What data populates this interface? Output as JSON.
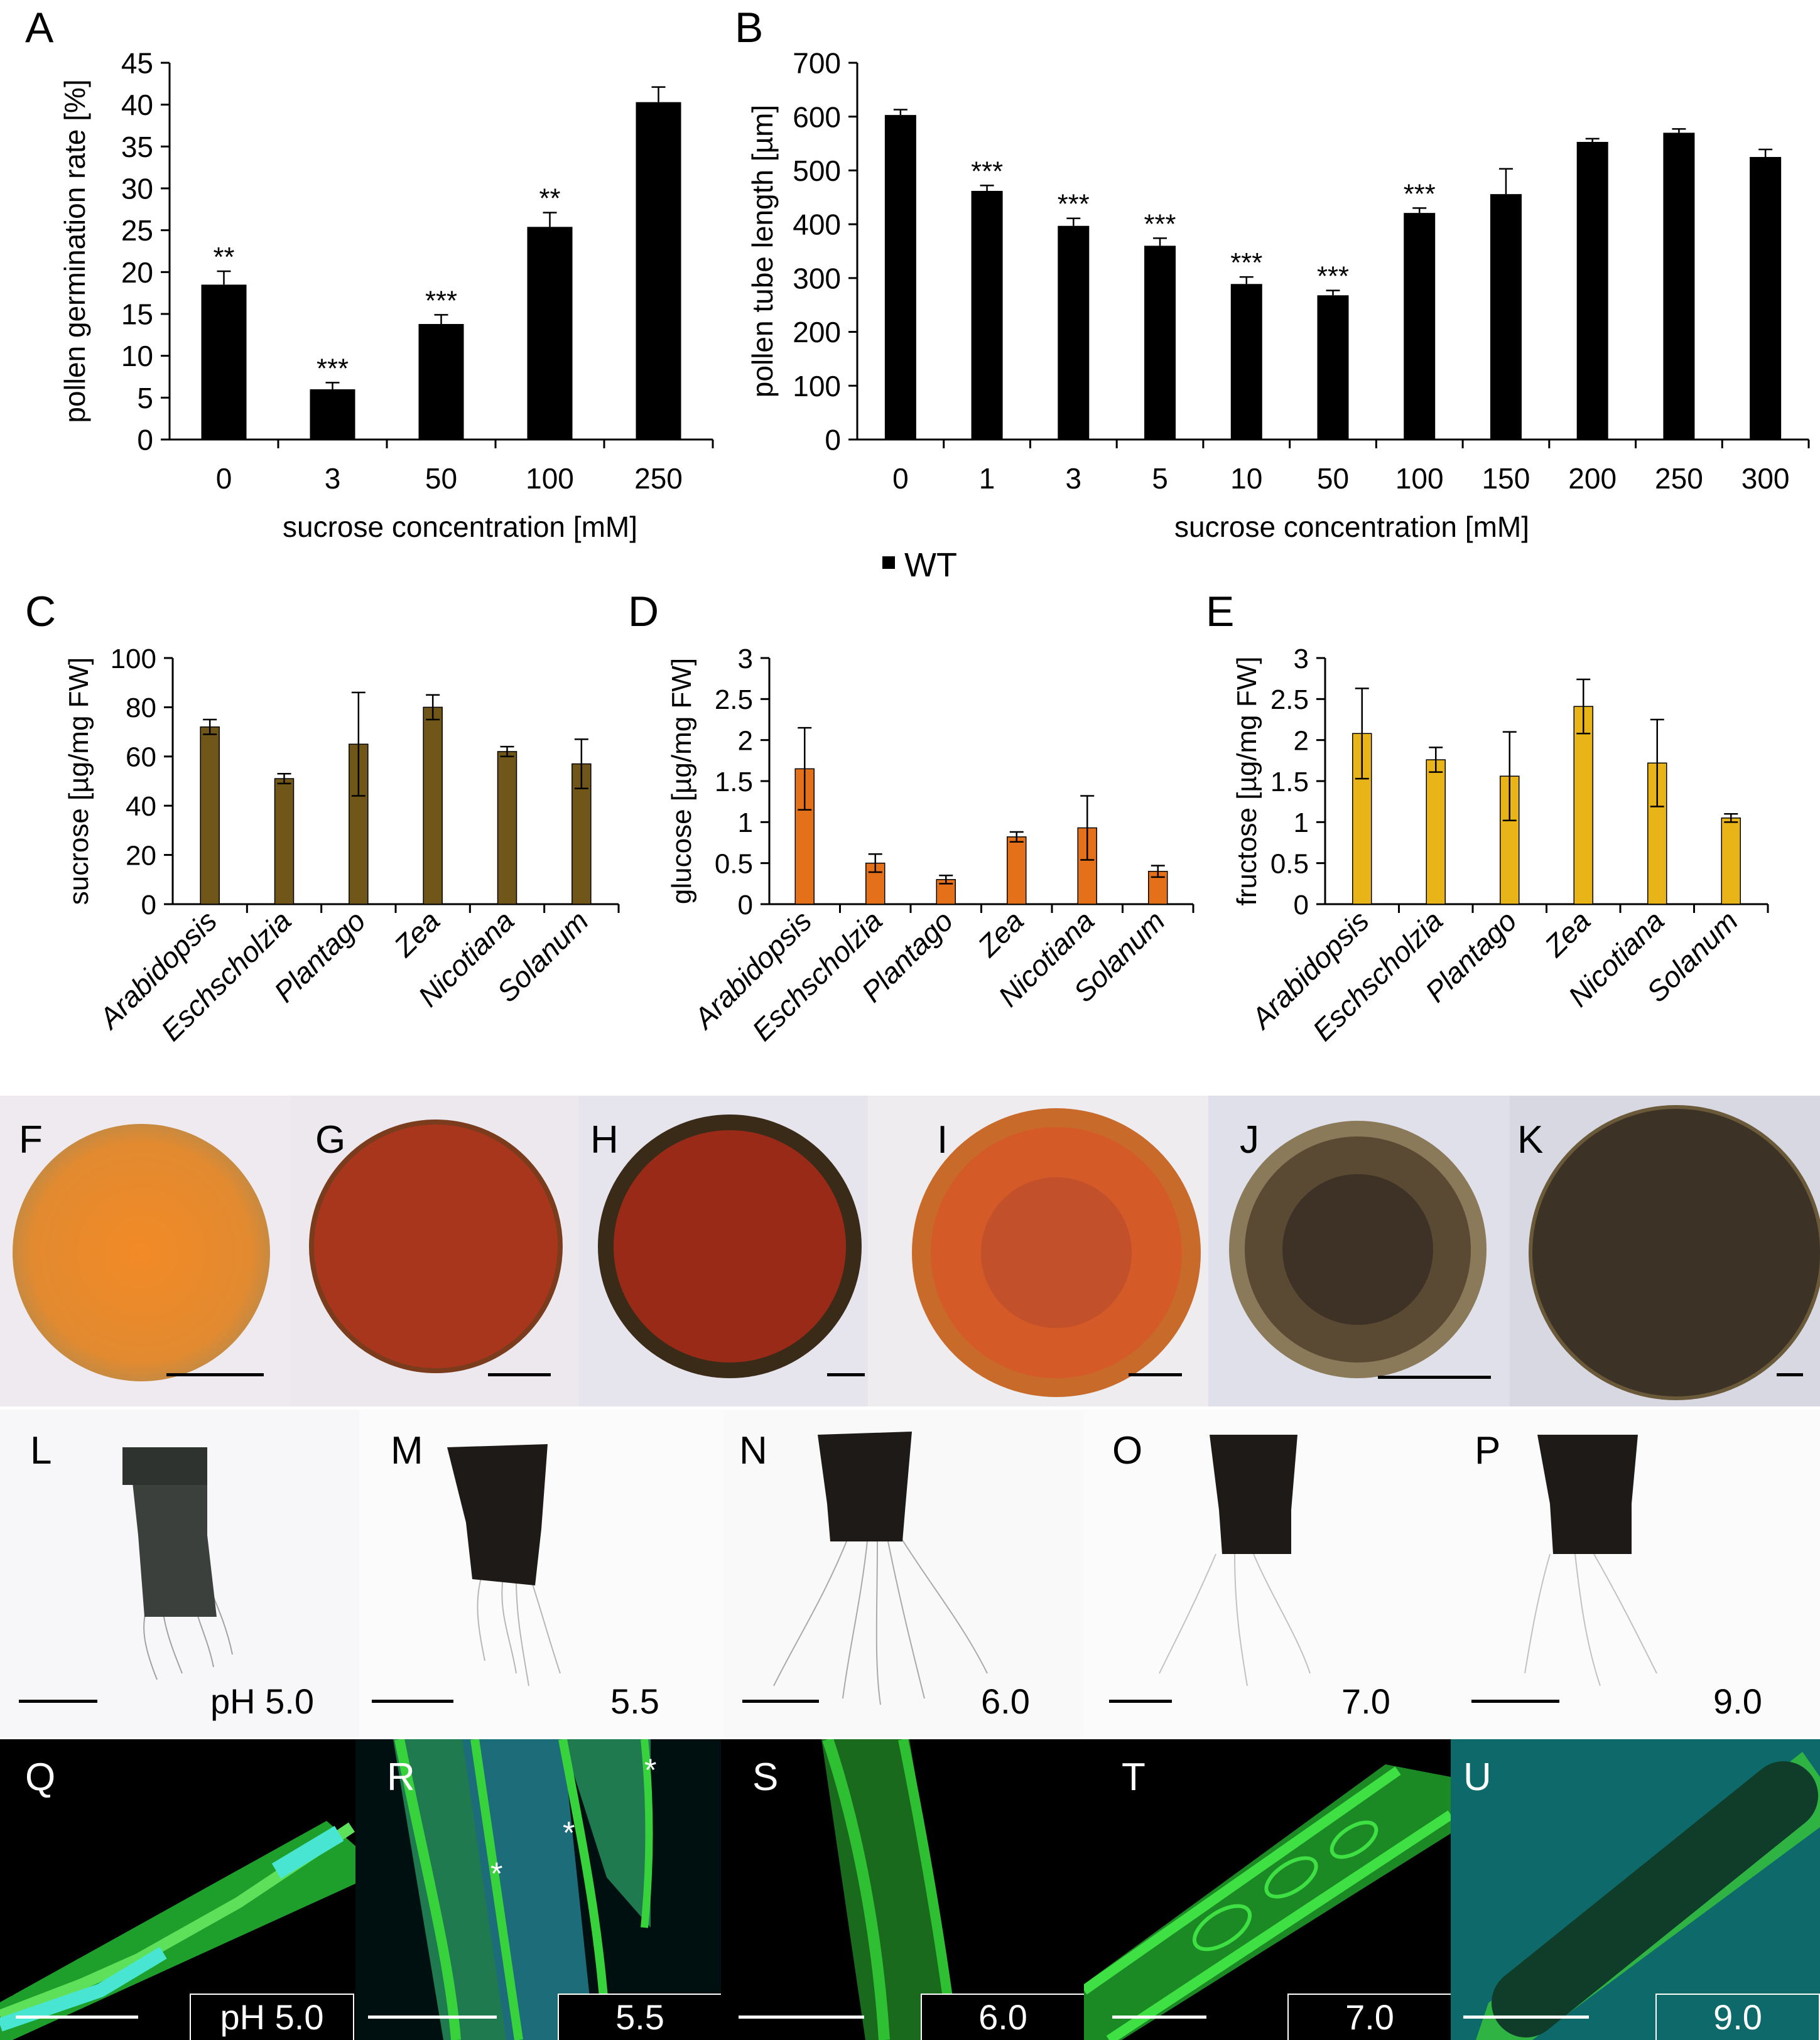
{
  "legend": {
    "label": "WT"
  },
  "panels": {
    "A": "A",
    "B": "B",
    "C": "C",
    "D": "D",
    "E": "E",
    "F": "F",
    "G": "G",
    "H": "H",
    "I": "I",
    "J": "J",
    "K": "K",
    "L": "L",
    "M": "M",
    "N": "N",
    "O": "O",
    "P": "P",
    "Q": "Q",
    "R": "R",
    "S": "S",
    "T": "T",
    "U": "U"
  },
  "ph_row": [
    "pH 5.0",
    "5.5",
    "6.0",
    "7.0",
    "9.0"
  ],
  "ph_row_fluor": [
    "pH 5.0",
    "5.5",
    "6.0",
    "7.0",
    "9.0"
  ],
  "asterisk": "*",
  "colors": {
    "wt": "#000000",
    "sucrose": "#705618",
    "glucose": "#e4711a",
    "fructose": "#e8b418",
    "pollen_stain_f": "#e08a2e",
    "pollen_stain_g": "#a83a1c",
    "pollen_stain_h": "#8e2a18",
    "pollen_stain_i": "#d2622a",
    "pollen_stain_j": "#4a3a2a",
    "pollen_stain_k": "#3c3226",
    "fluor_green": "#2fd23c",
    "fluor_cyan": "#38e0c8"
  },
  "chart_data": [
    {
      "id": "A",
      "type": "bar",
      "categories": [
        "0",
        "3",
        "50",
        "100",
        "250"
      ],
      "values": [
        18.5,
        6.0,
        13.8,
        25.4,
        40.3
      ],
      "errors": [
        1.6,
        0.8,
        1.1,
        1.7,
        1.8
      ],
      "significance": [
        "**",
        "***",
        "***",
        "**",
        ""
      ],
      "xlabel": "sucrose concentration [mM]",
      "ylabel": "pollen germination rate [%]",
      "ylim": [
        0,
        45
      ],
      "yticks": [
        0,
        5,
        10,
        15,
        20,
        25,
        30,
        35,
        40,
        45
      ],
      "color": "#000000",
      "grid": false
    },
    {
      "id": "B",
      "type": "bar",
      "categories": [
        "0",
        "1",
        "3",
        "5",
        "10",
        "50",
        "100",
        "150",
        "200",
        "250",
        "300"
      ],
      "values": [
        603,
        462,
        397,
        360,
        289,
        268,
        421,
        456,
        553,
        570,
        525
      ],
      "errors": [
        10,
        10,
        14,
        14,
        13,
        9,
        9,
        47,
        6,
        7,
        14
      ],
      "significance": [
        "",
        "***",
        "***",
        "***",
        "***",
        "***",
        "***",
        "",
        "",
        "",
        ""
      ],
      "xlabel": "sucrose concentration [mM]",
      "ylabel": "pollen tube length [µm]",
      "ylim": [
        0,
        700
      ],
      "yticks": [
        0,
        100,
        200,
        300,
        400,
        500,
        600,
        700
      ],
      "color": "#000000",
      "grid": false
    },
    {
      "id": "C",
      "type": "bar",
      "categories": [
        "Arabidopsis",
        "Eschscholzia",
        "Plantago",
        "Zea",
        "Nicotiana",
        "Solanum"
      ],
      "values": [
        72,
        51,
        65,
        80,
        62,
        57
      ],
      "errors": [
        3,
        2,
        21,
        5,
        2,
        10
      ],
      "ylabel": "sucrose [µg/mg FW]",
      "ylim": [
        0,
        100
      ],
      "yticks": [
        0,
        20,
        40,
        60,
        80,
        100
      ],
      "color": "#705618",
      "grid": false
    },
    {
      "id": "D",
      "type": "bar",
      "categories": [
        "Arabidopsis",
        "Eschscholzia",
        "Plantago",
        "Zea",
        "Nicotiana",
        "Solanum"
      ],
      "values": [
        1.65,
        0.5,
        0.3,
        0.82,
        0.93,
        0.4
      ],
      "errors": [
        0.5,
        0.11,
        0.05,
        0.06,
        0.39,
        0.07
      ],
      "ylabel": "glucose [µg/mg FW]",
      "ylim": [
        0,
        3
      ],
      "yticks": [
        "0",
        "0.5",
        "1",
        "1.5",
        "2",
        "2.5",
        "3"
      ],
      "color": "#e4711a",
      "grid": false
    },
    {
      "id": "E",
      "type": "bar",
      "categories": [
        "Arabidopsis",
        "Eschscholzia",
        "Plantago",
        "Zea",
        "Nicotiana",
        "Solanum"
      ],
      "values": [
        2.08,
        1.76,
        1.56,
        2.41,
        1.72,
        1.05
      ],
      "errors": [
        0.55,
        0.15,
        0.54,
        0.33,
        0.53,
        0.05
      ],
      "ylabel": "fructose [µg/mg FW]",
      "ylim": [
        0,
        3
      ],
      "yticks": [
        "0",
        "0.5",
        "1",
        "1.5",
        "2",
        "2.5",
        "3"
      ],
      "color": "#e8b418",
      "grid": false
    }
  ]
}
